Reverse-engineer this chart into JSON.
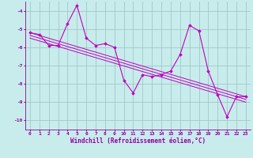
{
  "xlabel": "Windchill (Refroidissement éolien,°C)",
  "ylabel": "",
  "bg_color": "#c8ecec",
  "grid_color": "#a0c8c8",
  "line_color": "#c000c0",
  "xlim": [
    -0.5,
    23.5
  ],
  "ylim": [
    -10.5,
    -3.5
  ],
  "yticks": [
    -10,
    -9,
    -8,
    -7,
    -6,
    -5,
    -4
  ],
  "xticks": [
    0,
    1,
    2,
    3,
    4,
    5,
    6,
    7,
    8,
    9,
    10,
    11,
    12,
    13,
    14,
    15,
    16,
    17,
    18,
    19,
    20,
    21,
    22,
    23
  ],
  "main_series": {
    "x": [
      0,
      1,
      2,
      3,
      4,
      5,
      6,
      7,
      8,
      9,
      10,
      11,
      12,
      13,
      14,
      15,
      16,
      17,
      18,
      19,
      20,
      21,
      22,
      23
    ],
    "y": [
      -5.2,
      -5.3,
      -5.9,
      -5.9,
      -4.7,
      -3.7,
      -5.5,
      -5.9,
      -5.8,
      -6.0,
      -7.8,
      -8.5,
      -7.5,
      -7.6,
      -7.5,
      -7.3,
      -6.4,
      -4.8,
      -5.1,
      -7.3,
      -8.6,
      -9.8,
      -8.7,
      -8.7
    ]
  },
  "trend_lines": [
    {
      "x": [
        0,
        23
      ],
      "y": [
        -5.2,
        -8.7
      ]
    },
    {
      "x": [
        0,
        23
      ],
      "y": [
        -5.35,
        -8.85
      ]
    },
    {
      "x": [
        0,
        23
      ],
      "y": [
        -5.5,
        -9.0
      ]
    }
  ],
  "font_color": "#9000a0",
  "tick_fontsize": 4.5,
  "label_fontsize": 5.5,
  "marker": "D",
  "markersize": 1.8,
  "linewidth": 0.8
}
